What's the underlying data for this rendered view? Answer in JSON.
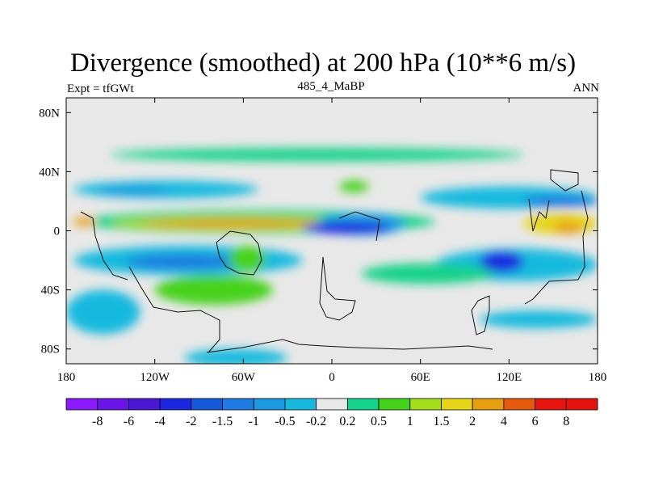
{
  "header": {
    "title": "Divergence (smoothed) at 200 hPa (10**6 m/s)",
    "left_label": "Expt = tfGWt",
    "center_label": "485_4_MaBP",
    "right_label": "ANN"
  },
  "chart_data": {
    "type": "heatmap",
    "title": "Divergence (smoothed) at 200 hPa (10**6 m/s)",
    "subtitle": "485_4_MaBP",
    "annotations": [
      "Expt = tfGWt",
      "ANN"
    ],
    "x_range": [
      -180,
      180
    ],
    "y_range": [
      -90,
      90
    ],
    "x_ticks": [
      {
        "value": -180,
        "label": "180"
      },
      {
        "value": -120,
        "label": "120W"
      },
      {
        "value": -60,
        "label": "60W"
      },
      {
        "value": 0,
        "label": "0"
      },
      {
        "value": 60,
        "label": "60E"
      },
      {
        "value": 120,
        "label": "120E"
      },
      {
        "value": 180,
        "label": "180"
      }
    ],
    "y_ticks": [
      {
        "value": 80,
        "label": "80N"
      },
      {
        "value": 40,
        "label": "40N"
      },
      {
        "value": 0,
        "label": "0"
      },
      {
        "value": -40,
        "label": "40S"
      },
      {
        "value": -80,
        "label": "80S"
      }
    ],
    "colorbar": {
      "levels": [
        "-8",
        "-6",
        "-4",
        "-2",
        "-1.5",
        "-1",
        "-0.5",
        "-0.2",
        "0.2",
        "0.5",
        "1",
        "1.5",
        "2",
        "4",
        "6",
        "8"
      ],
      "colors": [
        "#8c1aff",
        "#6b14e8",
        "#4a18d2",
        "#1c28e0",
        "#1459dc",
        "#1f7be0",
        "#1c9ae0",
        "#19b9de",
        "#e8e8e8",
        "#14d28a",
        "#46d21c",
        "#a3dd1c",
        "#e6d419",
        "#e89e12",
        "#e65a10",
        "#e6140e",
        "#e6120e"
      ]
    },
    "regions": [
      {
        "value": 0.3,
        "lon": [
          -150,
          130
        ],
        "lat": [
          47,
          56
        ]
      },
      {
        "value": 0.3,
        "lon": [
          -170,
          70
        ],
        "lat": [
          -2,
          14
        ]
      },
      {
        "value": 1.2,
        "lon": [
          -150,
          20
        ],
        "lat": [
          0,
          10
        ]
      },
      {
        "value": 2.5,
        "lon": [
          -130,
          0
        ],
        "lat": [
          2,
          8
        ]
      },
      {
        "value": 3.0,
        "lon": [
          -175,
          -160
        ],
        "lat": [
          3,
          9
        ]
      },
      {
        "value": -0.4,
        "lon": [
          -175,
          -50
        ],
        "lat": [
          22,
          34
        ]
      },
      {
        "value": -1.0,
        "lon": [
          -160,
          -110
        ],
        "lat": [
          24,
          30
        ]
      },
      {
        "value": -0.4,
        "lon": [
          60,
          180
        ],
        "lat": [
          15,
          30
        ]
      },
      {
        "value": -1.2,
        "lon": [
          130,
          180
        ],
        "lat": [
          16,
          24
        ]
      },
      {
        "value": 0.8,
        "lon": [
          5,
          25
        ],
        "lat": [
          26,
          34
        ]
      },
      {
        "value": 1.8,
        "lon": [
          130,
          180
        ],
        "lat": [
          -2,
          12
        ]
      },
      {
        "value": 3.5,
        "lon": [
          150,
          170
        ],
        "lat": [
          -2,
          6
        ]
      },
      {
        "value": -0.6,
        "lon": [
          -10,
          50
        ],
        "lat": [
          -3,
          12
        ]
      },
      {
        "value": -2.5,
        "lon": [
          -20,
          40
        ],
        "lat": [
          -2,
          6
        ]
      },
      {
        "value": -0.4,
        "lon": [
          -175,
          -20
        ],
        "lat": [
          -30,
          -10
        ]
      },
      {
        "value": -1.2,
        "lon": [
          -140,
          -60
        ],
        "lat": [
          -26,
          -16
        ]
      },
      {
        "value": 0.6,
        "lon": [
          -70,
          -45
        ],
        "lat": [
          -28,
          -10
        ]
      },
      {
        "value": -0.5,
        "lon": [
          70,
          180
        ],
        "lat": [
          -34,
          -12
        ]
      },
      {
        "value": -2.5,
        "lon": [
          100,
          130
        ],
        "lat": [
          -28,
          -14
        ]
      },
      {
        "value": 0.4,
        "lon": [
          20,
          110
        ],
        "lat": [
          -36,
          -22
        ]
      },
      {
        "value": 0.5,
        "lon": [
          -120,
          -40
        ],
        "lat": [
          -50,
          -30
        ]
      },
      {
        "value": -0.4,
        "lon": [
          -180,
          -130
        ],
        "lat": [
          -70,
          -40
        ]
      },
      {
        "value": -0.5,
        "lon": [
          100,
          180
        ],
        "lat": [
          -66,
          -54
        ]
      },
      {
        "value": -0.5,
        "lon": [
          -100,
          -30
        ],
        "lat": [
          -92,
          -80
        ]
      }
    ],
    "land_outline": true,
    "grid": false
  }
}
